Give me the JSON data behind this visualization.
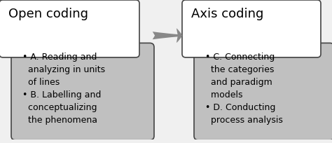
{
  "title_left": "Open coding",
  "title_right": "Axis coding",
  "bullet_left_1": "• A. Reading and\n  analyzing in units\n  of lines",
  "bullet_left_2": "• B. Labelling and\n  conceptualizing\n  the phenomena",
  "bullet_right_1": "• C. Connecting\n  the categories\n  and paradigm\n  models",
  "bullet_right_2": "• D. Conducting\n  process analysis",
  "bg_white": "#ffffff",
  "bg_gray": "#c0c0c0",
  "bg_light": "#f0f0f0",
  "border_color": "#444444",
  "text_color": "#000000",
  "arrow_color": "#888888",
  "title_fontsize": 13,
  "bullet_fontsize": 9
}
